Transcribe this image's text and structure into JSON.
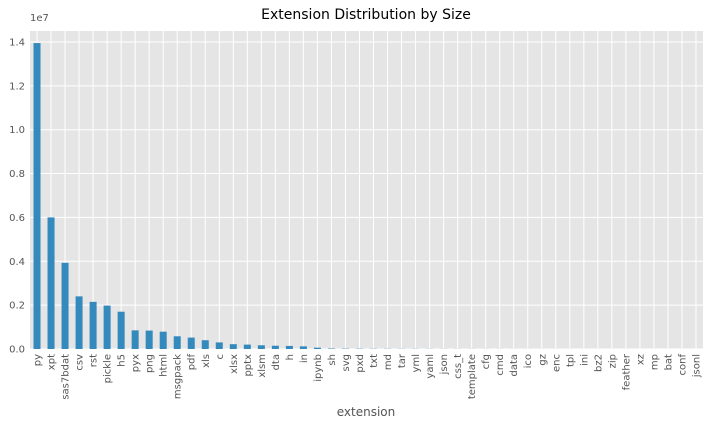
{
  "chart_data": {
    "type": "bar",
    "title": "Extension Distribution by Size",
    "xlabel": "extension",
    "ylabel": "",
    "offset_text": "1e7",
    "ylim": [
      0,
      14500000
    ],
    "y_ticks": [
      0,
      2000000,
      4000000,
      6000000,
      8000000,
      10000000,
      12000000,
      14000000
    ],
    "y_tick_labels": [
      "0.0",
      "0.2",
      "0.4",
      "0.6",
      "0.8",
      "1.0",
      "1.2",
      "1.4"
    ],
    "grid": true,
    "categories": [
      "py",
      "xpt",
      "sas7bdat",
      "csv",
      "rst",
      "pickle",
      "h5",
      "pyx",
      "png",
      "html",
      "msgpack",
      "pdf",
      "xls",
      "c",
      "xlsx",
      "pptx",
      "xlsm",
      "dta",
      "h",
      "in",
      "ipynb",
      "sh",
      "svg",
      "pxd",
      "txt",
      "md",
      "tar",
      "yml",
      "yaml",
      "json",
      "css_t",
      "template",
      "cfg",
      "cmd",
      "data",
      "ico",
      "gz",
      "enc",
      "tpl",
      "ini",
      "bz2",
      "zip",
      "feather",
      "xz",
      "mp",
      "bat",
      "conf",
      "jsonl"
    ],
    "values": [
      13950000,
      6000000,
      3930000,
      2400000,
      2150000,
      1980000,
      1700000,
      850000,
      840000,
      790000,
      580000,
      520000,
      400000,
      300000,
      220000,
      200000,
      170000,
      150000,
      140000,
      120000,
      60000,
      20000,
      15000,
      12000,
      10000,
      9000,
      8000,
      7000,
      6000,
      5000,
      4500,
      4000,
      3500,
      3000,
      2500,
      2000,
      1800,
      1600,
      1400,
      1200,
      1000,
      900,
      800,
      700,
      600,
      500,
      400,
      300
    ],
    "colors": {
      "bar": "#348abd",
      "plot_bg": "#e5e5e5",
      "grid": "#ffffff",
      "text": "#555555"
    }
  }
}
